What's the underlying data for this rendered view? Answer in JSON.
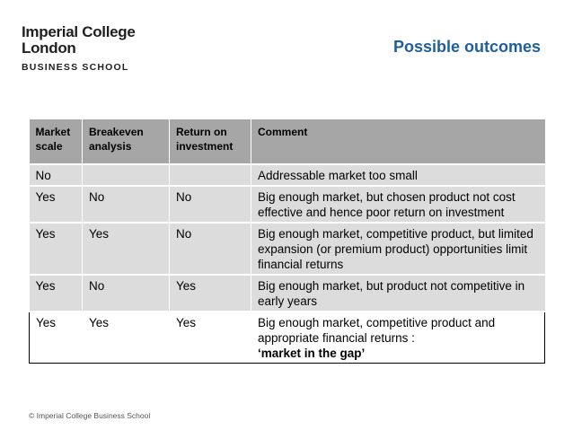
{
  "logo": {
    "line1": "Imperial College",
    "line2": "London",
    "line3": "BUSINESS SCHOOL"
  },
  "title": "Possible outcomes",
  "table": {
    "headers": [
      "Market scale",
      "Breakeven analysis",
      "Return on investment",
      "Comment"
    ],
    "rows": [
      {
        "market": "No",
        "breakeven": "",
        "roi": "",
        "comment": "Addressable market too small"
      },
      {
        "market": "Yes",
        "breakeven": "No",
        "roi": "No",
        "comment": "Big enough market, but chosen product not cost effective and hence poor return on investment"
      },
      {
        "market": "Yes",
        "breakeven": "Yes",
        "roi": "No",
        "comment": "Big enough market, competitive product, but limited expansion (or premium product) opportunities limit financial returns"
      },
      {
        "market": "Yes",
        "breakeven": "No",
        "roi": "Yes",
        "comment": "Big enough market, but product not competitive in early years"
      },
      {
        "market": "Yes",
        "breakeven": "Yes",
        "roi": "Yes",
        "comment": "Big enough market, competitive product and appropriate financial returns :",
        "emphasis": "‘market in the gap’"
      }
    ]
  },
  "footer": "© Imperial College Business School"
}
